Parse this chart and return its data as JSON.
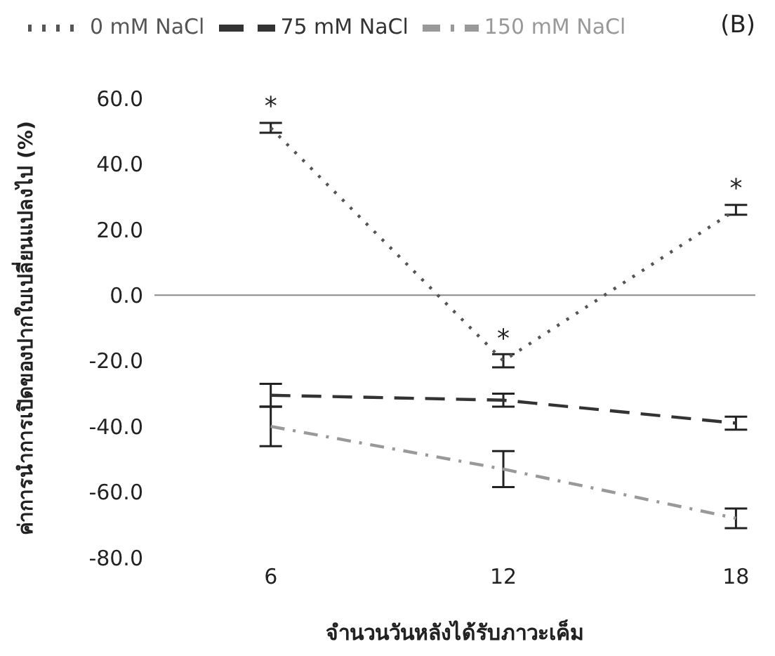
{
  "chart_data": {
    "type": "line",
    "title": "(B)",
    "xlabel": "จำนวนวันหลังได้รับภาวะเค็ม",
    "ylabel": "ค่าการนำการเปิดของปากใบเปลี่ยนแปลงไป (%)",
    "x": [
      6,
      12,
      18
    ],
    "xlim": [
      3,
      18.5
    ],
    "xticks": [
      6,
      12,
      18
    ],
    "ylim": [
      -80,
      60
    ],
    "yticks": [
      {
        "value": -80,
        "label": "-80.0"
      },
      {
        "value": -60,
        "label": "-60.0"
      },
      {
        "value": -40,
        "label": "-40.0"
      },
      {
        "value": -20,
        "label": "-20.0"
      },
      {
        "value": 0,
        "label": "0.0"
      },
      {
        "value": 20,
        "label": "20.0"
      },
      {
        "value": 40,
        "label": "40.0"
      },
      {
        "value": 60,
        "label": "60.0"
      }
    ],
    "series": [
      {
        "name": "0 mM NaCl",
        "color": "#555555",
        "values": [
          51,
          -20,
          26
        ],
        "errors": [
          1.5,
          2,
          1.5
        ],
        "line_style": "dotted"
      },
      {
        "name": "75 mM NaCl",
        "color": "#333333",
        "values": [
          -30.5,
          -32,
          -39
        ],
        "errors": [
          3.5,
          2,
          2
        ],
        "line_style": "dashed"
      },
      {
        "name": "150 mM NaCl",
        "color": "#999999",
        "values": [
          -40,
          -53,
          -68
        ],
        "errors": [
          6,
          5.5,
          3
        ],
        "line_style": "dashdot"
      }
    ],
    "ref_lines": [
      {
        "axis": "y",
        "value": 0,
        "color": "#888888"
      }
    ],
    "annotations": [
      {
        "text": "*",
        "x": 6,
        "y": 51
      },
      {
        "text": "*",
        "x": 12,
        "y": -20
      },
      {
        "text": "*",
        "x": 18,
        "y": 26
      }
    ],
    "legend": "top left",
    "marker": "none",
    "grid": false
  }
}
